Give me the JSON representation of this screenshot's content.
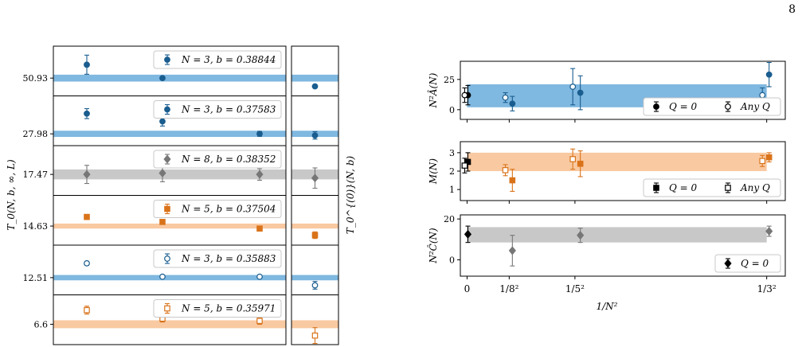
{
  "page_number": "8",
  "chart_data": [
    {
      "type": "scatter",
      "ylabel": "T_0(N, b, ∞, L)",
      "right_ylabel": "T_0^{(0)}(N, b)",
      "panels": [
        {
          "legend": "N = 3, b = 0.38844",
          "ytick": "50.93",
          "color": "#1a5d8f",
          "band_color": "#7fb8e0",
          "marker": "circle",
          "filled": true,
          "center": 50.93,
          "half_width": 0.18,
          "ylim": [
            50.0,
            52.6
          ],
          "points": [
            {
              "x": 1,
              "y": 51.63,
              "err": 0.5
            },
            {
              "x": 2,
              "y": 50.93,
              "err": 0.06
            },
            {
              "x": 3,
              "y": null
            }
          ],
          "extrapolated": {
            "y": 50.5,
            "err": 0.07
          }
        },
        {
          "legend": "N = 3, b = 0.37583",
          "ytick": "27.98",
          "color": "#1a5d8f",
          "band_color": "#7fb8e0",
          "marker": "circle",
          "filled": true,
          "center": 27.98,
          "half_width": 0.1,
          "ylim": [
            27.6,
            29.2
          ],
          "points": [
            {
              "x": 1,
              "y": 28.63,
              "err": 0.16
            },
            {
              "x": 2,
              "y": 28.38,
              "err": 0.15
            },
            {
              "x": 3,
              "y": 27.98,
              "err": 0.08
            }
          ],
          "extrapolated": {
            "y": 27.93,
            "err": 0.12
          }
        },
        {
          "legend": "N = 8, b = 0.38352",
          "ytick": "17.47",
          "color": "#777777",
          "band_color": "#c8c8c8",
          "marker": "diamond",
          "filled": true,
          "center": 17.47,
          "half_width": 0.23,
          "ylim": [
            16.5,
            18.8
          ],
          "points": [
            {
              "x": 1,
              "y": 17.47,
              "err": 0.42
            },
            {
              "x": 2,
              "y": 17.53,
              "err": 0.4
            },
            {
              "x": 3,
              "y": 17.47,
              "err": 0.27
            }
          ],
          "extrapolated": {
            "y": 17.3,
            "err": 0.47
          }
        },
        {
          "legend": "N = 5, b = 0.37504",
          "ytick": "14.63",
          "color": "#d9731a",
          "band_color": "#f9c9a1",
          "marker": "square",
          "filled": true,
          "center": 14.63,
          "half_width": 0.03,
          "ylim": [
            14.4,
            15.0
          ],
          "points": [
            {
              "x": 1,
              "y": 14.74,
              "err": 0.03
            },
            {
              "x": 2,
              "y": 14.68,
              "err": 0.025
            },
            {
              "x": 3,
              "y": 14.6,
              "err": 0.02
            }
          ],
          "extrapolated": {
            "y": 14.52,
            "err": 0.04
          }
        },
        {
          "legend": "N = 3, b = 0.35883",
          "ytick": "12.51",
          "color": "#1a5d8f",
          "band_color": "#7fb8e0",
          "marker": "circle",
          "filled": false,
          "center": 12.51,
          "half_width": 0.014,
          "ylim": [
            12.42,
            12.68
          ],
          "points": [
            {
              "x": 1,
              "y": 12.585,
              "err": 0.01
            },
            {
              "x": 2,
              "y": 12.515,
              "err": 0.008
            },
            {
              "x": 3,
              "y": 12.515,
              "err": 0.008
            }
          ],
          "extrapolated": {
            "y": 12.47,
            "err": 0.02
          }
        },
        {
          "legend": "N = 5, b = 0.35971",
          "ytick": "6.6",
          "color": "#d9731a",
          "band_color": "#f9c9a1",
          "marker": "square",
          "filled": false,
          "center": 6.6,
          "half_width": 0.035,
          "ylim": [
            6.42,
            6.86
          ],
          "points": [
            {
              "x": 1,
              "y": 6.725,
              "err": 0.035
            },
            {
              "x": 2,
              "y": 6.65,
              "err": 0.03
            },
            {
              "x": 3,
              "y": 6.63,
              "err": 0.03
            }
          ],
          "extrapolated": {
            "y": 6.5,
            "err": 0.07
          }
        }
      ]
    },
    {
      "type": "scatter",
      "xlabel": "1/N²",
      "xticks": [
        "0",
        "1/8²",
        "1/5²",
        "1/3²"
      ],
      "xtick_values": [
        0,
        0.015625,
        0.04,
        0.111111
      ],
      "xlim": [
        -0.0025,
        0.118
      ],
      "panels": [
        {
          "ylabel": "N²Â(N)",
          "ylim": [
            -8,
            40
          ],
          "yticks": [
            "0",
            "25"
          ],
          "ytick_values": [
            0,
            25
          ],
          "band": {
            "low": 2,
            "high": 21,
            "color": "#7fb8e0"
          },
          "legend": [
            {
              "label": "Q = 0",
              "filled": true,
              "marker": "circle"
            },
            {
              "label": "Any Q",
              "filled": false,
              "marker": "circle"
            }
          ],
          "series": [
            {
              "name": "Q = 0",
              "color": "#000000",
              "marker": "circle",
              "filled": true,
              "points": [
                {
                  "x": 0.0003,
                  "y": 12,
                  "err": 8
                }
              ]
            },
            {
              "name": "Any Q",
              "color": "#000000",
              "marker": "circle",
              "filled": false,
              "points": [
                {
                  "x": -0.0009,
                  "y": 12,
                  "err": 6
                }
              ]
            },
            {
              "color": "#1a5d8f",
              "marker": "circle",
              "filled": true,
              "points": [
                {
                  "x": 0.0168,
                  "y": 5,
                  "err": 6
                },
                {
                  "x": 0.042,
                  "y": 14,
                  "err": 14
                },
                {
                  "x": 0.112,
                  "y": 29,
                  "err": 10
                }
              ]
            },
            {
              "color": "#1a5d8f",
              "marker": "circle",
              "filled": false,
              "points": [
                {
                  "x": 0.0142,
                  "y": 10,
                  "err": 4
                },
                {
                  "x": 0.0392,
                  "y": 19,
                  "err": 15
                },
                {
                  "x": 0.1095,
                  "y": 12,
                  "err": 6
                }
              ]
            }
          ]
        },
        {
          "ylabel": "M(N)",
          "ylim": [
            0.4,
            3.6
          ],
          "yticks": [
            "1",
            "2",
            "3"
          ],
          "ytick_values": [
            1,
            2,
            3
          ],
          "band": {
            "low": 2.0,
            "high": 3.0,
            "color": "#f9c9a1"
          },
          "legend": [
            {
              "label": "Q = 0",
              "filled": true,
              "marker": "square"
            },
            {
              "label": "Any Q",
              "filled": false,
              "marker": "square"
            }
          ],
          "series": [
            {
              "name": "Q = 0",
              "color": "#000000",
              "marker": "square",
              "filled": true,
              "points": [
                {
                  "x": 0.0003,
                  "y": 2.5,
                  "err": 0.5
                }
              ]
            },
            {
              "name": "Any Q",
              "color": "#000000",
              "marker": "square",
              "filled": false,
              "points": [
                {
                  "x": -0.0009,
                  "y": 2.3,
                  "err": 0.4
                }
              ]
            },
            {
              "color": "#d9731a",
              "marker": "square",
              "filled": true,
              "points": [
                {
                  "x": 0.0168,
                  "y": 1.5,
                  "err": 0.6
                },
                {
                  "x": 0.042,
                  "y": 2.4,
                  "err": 0.7
                },
                {
                  "x": 0.112,
                  "y": 2.75,
                  "err": 0.25
                }
              ]
            },
            {
              "color": "#d9731a",
              "marker": "square",
              "filled": false,
              "points": [
                {
                  "x": 0.0142,
                  "y": 2.05,
                  "err": 0.3
                },
                {
                  "x": 0.0392,
                  "y": 2.65,
                  "err": 0.55
                },
                {
                  "x": 0.1095,
                  "y": 2.55,
                  "err": 0.3
                }
              ]
            }
          ]
        },
        {
          "ylabel": "N²Ĉ(N)",
          "ylim": [
            -8,
            22
          ],
          "yticks": [
            "0",
            "20"
          ],
          "ytick_values": [
            0,
            20
          ],
          "band": {
            "low": 8.5,
            "high": 16,
            "color": "#c8c8c8"
          },
          "legend": [
            {
              "label": "Q = 0",
              "filled": true,
              "marker": "diamond"
            }
          ],
          "series": [
            {
              "name": "Q = 0",
              "color": "#000000",
              "marker": "diamond",
              "filled": true,
              "points": [
                {
                  "x": 0.0003,
                  "y": 12.5,
                  "err": 4
                }
              ]
            },
            {
              "color": "#777777",
              "marker": "diamond",
              "filled": true,
              "points": [
                {
                  "x": 0.0168,
                  "y": 4.5,
                  "err": 7.5
                },
                {
                  "x": 0.042,
                  "y": 12,
                  "err": 3.5
                },
                {
                  "x": 0.112,
                  "y": 14,
                  "err": 2.5
                }
              ]
            }
          ]
        }
      ]
    }
  ]
}
